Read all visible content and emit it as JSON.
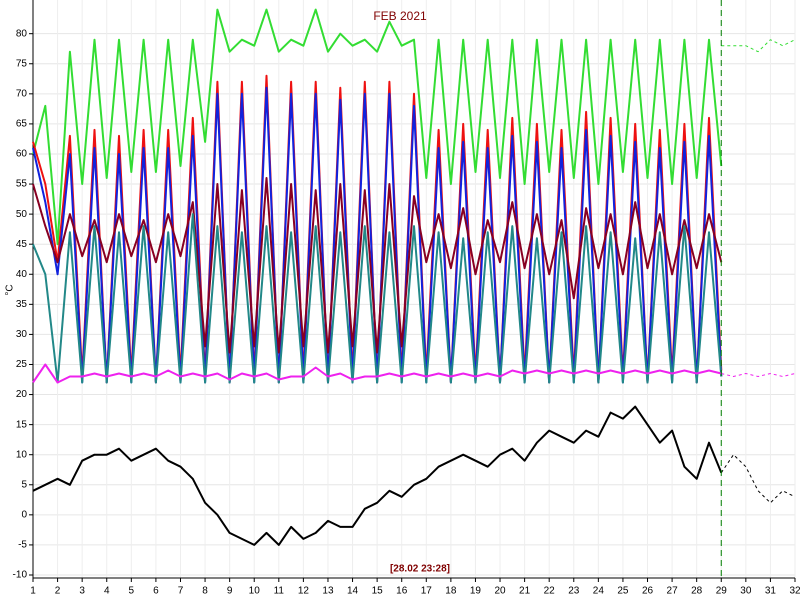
{
  "chart_data": {
    "type": "line",
    "title": "FEB 2021",
    "ylabel": "°C",
    "annotation": "[28.02 23:28]",
    "marker_x": 29,
    "marker_color": "#008000",
    "xlim": [
      1,
      32
    ],
    "xticks": [
      1,
      2,
      3,
      4,
      5,
      6,
      7,
      8,
      9,
      10,
      11,
      12,
      13,
      14,
      15,
      16,
      17,
      18,
      19,
      20,
      21,
      22,
      23,
      24,
      25,
      26,
      27,
      28,
      29,
      30,
      31,
      32
    ],
    "ylim": [
      -10.5,
      85.6
    ],
    "yticks": [
      -10,
      -5,
      0,
      5,
      10,
      15,
      20,
      25,
      30,
      35,
      40,
      45,
      50,
      55,
      60,
      65,
      70,
      75,
      80
    ],
    "grid": true,
    "x": [
      1,
      1.5,
      2,
      2.5,
      3,
      3.5,
      4,
      4.5,
      5,
      5.5,
      6,
      6.5,
      7,
      7.5,
      8,
      8.5,
      9,
      9.5,
      10,
      10.5,
      11,
      11.5,
      12,
      12.5,
      13,
      13.5,
      14,
      14.5,
      15,
      15.5,
      16,
      16.5,
      17,
      17.5,
      18,
      18.5,
      19,
      19.5,
      20,
      20.5,
      21,
      21.5,
      22,
      22.5,
      23,
      23.5,
      24,
      24.5,
      25,
      25.5,
      26,
      26.5,
      27,
      27.5,
      28,
      28.5,
      29
    ],
    "series": [
      {
        "color": "#33dd33",
        "values": [
          60,
          68,
          45,
          77,
          55,
          79,
          56,
          79,
          57,
          79,
          57,
          79,
          58,
          79,
          62,
          84,
          77,
          79,
          78,
          84,
          77,
          79,
          78,
          84,
          77,
          80,
          78,
          79,
          77,
          82,
          78,
          79,
          56,
          79,
          55,
          79,
          57,
          79,
          56,
          79,
          55,
          79,
          57,
          79,
          56,
          79,
          55,
          79,
          57,
          79,
          56,
          79,
          55,
          79,
          56,
          79,
          58
        ]
      },
      {
        "color": "#ee1111",
        "values": [
          62,
          55,
          42,
          63,
          23,
          64,
          22,
          63,
          23,
          64,
          22,
          64,
          23,
          66,
          23,
          72,
          22,
          72,
          23,
          73,
          22,
          72,
          23,
          72,
          22,
          71,
          23,
          72,
          22,
          72,
          23,
          70,
          23,
          64,
          22,
          65,
          23,
          64,
          22,
          66,
          23,
          65,
          22,
          64,
          23,
          67,
          22,
          66,
          23,
          65,
          22,
          64,
          23,
          65,
          22,
          66,
          24
        ]
      },
      {
        "color": "#1122dd",
        "values": [
          61,
          52,
          40,
          60,
          22,
          61,
          22,
          60,
          22,
          61,
          22,
          61,
          22,
          63,
          22,
          70,
          22,
          70,
          22,
          71,
          22,
          70,
          22,
          70,
          22,
          69,
          22,
          70,
          22,
          70,
          22,
          68,
          22,
          61,
          22,
          62,
          22,
          61,
          22,
          63,
          22,
          62,
          22,
          61,
          22,
          64,
          22,
          63,
          22,
          62,
          22,
          61,
          22,
          62,
          22,
          63,
          23
        ]
      },
      {
        "color": "#880022",
        "values": [
          55,
          48,
          42,
          50,
          43,
          49,
          42,
          50,
          43,
          49,
          42,
          50,
          43,
          52,
          28,
          55,
          27,
          54,
          28,
          56,
          27,
          55,
          28,
          54,
          27,
          55,
          28,
          54,
          27,
          55,
          28,
          53,
          42,
          50,
          41,
          51,
          40,
          49,
          42,
          52,
          41,
          50,
          40,
          49,
          36,
          51,
          41,
          50,
          40,
          52,
          41,
          50,
          40,
          49,
          41,
          50,
          42
        ]
      },
      {
        "color": "#228888",
        "values": [
          45,
          40,
          22,
          47,
          22,
          48,
          22,
          47,
          22,
          48,
          22,
          47,
          22,
          50,
          22,
          48,
          22,
          47,
          22,
          48,
          22,
          47,
          22,
          48,
          22,
          47,
          22,
          48,
          22,
          47,
          22,
          48,
          22,
          47,
          22,
          46,
          22,
          47,
          22,
          48,
          22,
          46,
          22,
          47,
          22,
          48,
          22,
          47,
          22,
          46,
          22,
          47,
          22,
          48,
          22,
          47,
          23
        ]
      },
      {
        "color": "#ee22ee",
        "values": [
          22,
          25,
          22,
          23,
          23,
          23.5,
          23,
          23.5,
          23,
          23.5,
          23,
          24,
          23,
          23.5,
          23,
          23.5,
          22.5,
          23.5,
          23,
          23.5,
          22.5,
          23,
          23,
          24.5,
          23,
          23.5,
          22.5,
          23,
          23,
          23.5,
          23,
          23.5,
          23,
          23.5,
          23,
          23.5,
          23,
          23.5,
          23,
          24,
          23.5,
          24,
          23.5,
          24,
          23.5,
          24,
          23.5,
          24,
          23.5,
          24,
          23.5,
          24,
          23.5,
          24,
          23.5,
          24,
          23.5
        ]
      },
      {
        "color": "#000000",
        "values": [
          4,
          5,
          6,
          5,
          9,
          10,
          10,
          11,
          9,
          10,
          11,
          9,
          8,
          6,
          2,
          0,
          -3,
          -4,
          -5,
          -3,
          -5,
          -2,
          -4,
          -3,
          -1,
          -2,
          -2,
          1,
          2,
          4,
          3,
          5,
          6,
          8,
          9,
          10,
          9,
          8,
          10,
          11,
          9,
          12,
          14,
          13,
          12,
          14,
          13,
          17,
          16,
          18,
          15,
          12,
          14,
          8,
          6,
          12,
          7
        ]
      },
      {
        "color": "#33dd33",
        "dashed": true,
        "x": [
          29,
          29.5,
          30,
          30.5,
          31,
          31.5,
          32
        ],
        "values": [
          78,
          78,
          78,
          77,
          79,
          78,
          79
        ]
      },
      {
        "color": "#ee22ee",
        "dashed": true,
        "x": [
          29,
          29.5,
          30,
          30.5,
          31,
          31.5,
          32
        ],
        "values": [
          23.5,
          23,
          23.5,
          23,
          23.5,
          23,
          23.5
        ]
      },
      {
        "color": "#000000",
        "dashed": true,
        "x": [
          29,
          29.5,
          30,
          30.5,
          31,
          31.5,
          32
        ],
        "values": [
          7,
          10,
          8,
          4,
          2,
          4,
          3
        ]
      }
    ]
  }
}
